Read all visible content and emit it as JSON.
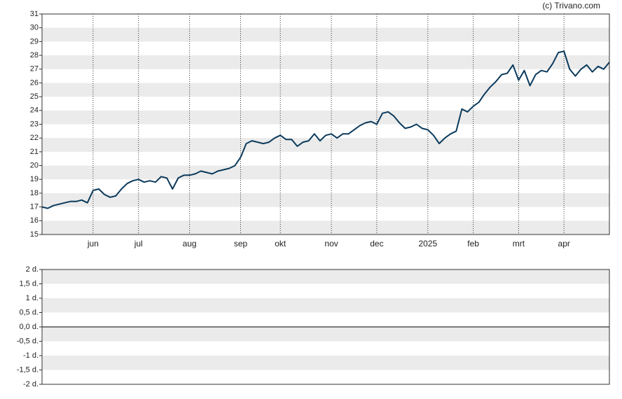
{
  "credit": "(c) Trivano.com",
  "chart_data": [
    {
      "type": "line",
      "categories": [
        null,
        null,
        null,
        null,
        null,
        null,
        null,
        null,
        null,
        "jun",
        null,
        null,
        null,
        null,
        null,
        null,
        null,
        "jul",
        null,
        null,
        null,
        null,
        null,
        null,
        null,
        null,
        "aug",
        null,
        null,
        null,
        null,
        null,
        null,
        null,
        null,
        "sep",
        null,
        null,
        null,
        null,
        null,
        null,
        "okt",
        null,
        null,
        null,
        null,
        null,
        null,
        null,
        null,
        "nov",
        null,
        null,
        null,
        null,
        null,
        null,
        null,
        "dec",
        null,
        null,
        null,
        null,
        null,
        null,
        null,
        null,
        "2025",
        null,
        null,
        null,
        null,
        null,
        null,
        null,
        "feb",
        null,
        null,
        null,
        null,
        null,
        null,
        null,
        "mrt",
        null,
        null,
        null,
        null,
        null,
        null,
        null,
        "apr",
        null,
        null,
        null,
        null,
        null,
        null,
        null,
        null
      ],
      "series": [
        {
          "color": "#0b3a5c",
          "values": [
            17.0,
            16.9,
            17.1,
            17.2,
            17.3,
            17.4,
            17.4,
            17.5,
            17.3,
            18.2,
            18.3,
            17.9,
            17.7,
            17.8,
            18.3,
            18.7,
            18.9,
            19.0,
            18.8,
            18.9,
            18.8,
            19.2,
            19.1,
            18.3,
            19.1,
            19.3,
            19.3,
            19.4,
            19.6,
            19.5,
            19.4,
            19.6,
            19.7,
            19.8,
            20.0,
            20.6,
            21.6,
            21.8,
            21.7,
            21.6,
            21.7,
            22.0,
            22.2,
            21.9,
            21.9,
            21.4,
            21.7,
            21.8,
            22.3,
            21.8,
            22.2,
            22.3,
            22.0,
            22.3,
            22.3,
            22.6,
            22.9,
            23.1,
            23.2,
            23.0,
            23.8,
            23.9,
            23.6,
            23.1,
            22.7,
            22.8,
            23.0,
            22.7,
            22.6,
            22.2,
            21.6,
            22.0,
            22.3,
            22.5,
            24.1,
            23.9,
            24.3,
            24.6,
            25.2,
            25.7,
            26.1,
            26.6,
            26.7,
            27.3,
            26.2,
            26.9,
            25.8,
            26.6,
            26.9,
            26.8,
            27.4,
            28.2,
            28.3,
            27.0,
            26.5,
            27.0,
            27.3,
            26.8,
            27.2,
            27.0,
            27.5
          ]
        }
      ],
      "ylim": [
        15,
        31
      ],
      "yticks": [
        15,
        16,
        17,
        18,
        19,
        20,
        21,
        22,
        23,
        24,
        25,
        26,
        27,
        28,
        29,
        30,
        31
      ]
    },
    {
      "type": "line",
      "ylim": [
        -2,
        2
      ],
      "yticks": [
        {
          "value": 2,
          "label": "2 d."
        },
        {
          "value": 1.5,
          "label": "1,5 d."
        },
        {
          "value": 1,
          "label": "1 d."
        },
        {
          "value": 0.5,
          "label": "0,5 d."
        },
        {
          "value": 0,
          "label": "0,0 d."
        },
        {
          "value": -0.5,
          "label": "-0,5 d."
        },
        {
          "value": -1,
          "label": "-1 d."
        },
        {
          "value": -1.5,
          "label": "-1,5 d."
        },
        {
          "value": -2,
          "label": "-2 d."
        }
      ]
    }
  ]
}
